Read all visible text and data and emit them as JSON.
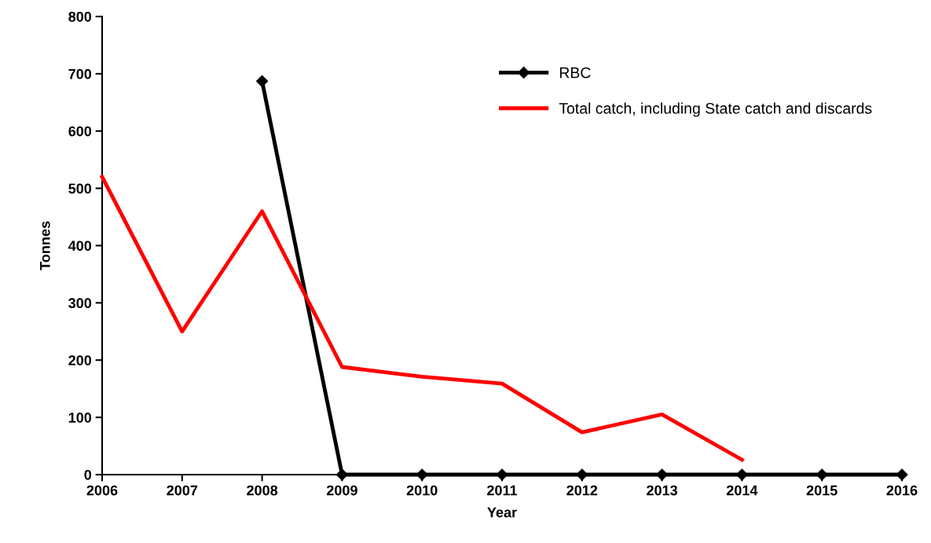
{
  "chart_data": {
    "type": "line",
    "xlabel": "Year",
    "ylabel": "Tonnes",
    "x": [
      2006,
      2007,
      2008,
      2009,
      2010,
      2011,
      2012,
      2013,
      2014,
      2015,
      2016
    ],
    "series": [
      {
        "name": "RBC",
        "color": "#000000",
        "marker": "diamond",
        "values": [
          null,
          null,
          687,
          0,
          0,
          0,
          0,
          0,
          0,
          0,
          0
        ]
      },
      {
        "name": "Total catch, including State catch and discards",
        "color": "#ff0000",
        "marker": "none",
        "values": [
          520,
          250,
          460,
          188,
          171,
          159,
          74,
          105,
          26,
          null,
          null
        ]
      }
    ],
    "xlim": [
      2006,
      2016
    ],
    "xticks": [
      2006,
      2007,
      2008,
      2009,
      2010,
      2011,
      2012,
      2013,
      2014,
      2015,
      2016
    ],
    "ylim": [
      0,
      800
    ],
    "yticks": [
      0,
      100,
      200,
      300,
      400,
      500,
      600,
      700,
      800
    ],
    "grid": false,
    "legend": "top right",
    "line_style": "solid"
  }
}
